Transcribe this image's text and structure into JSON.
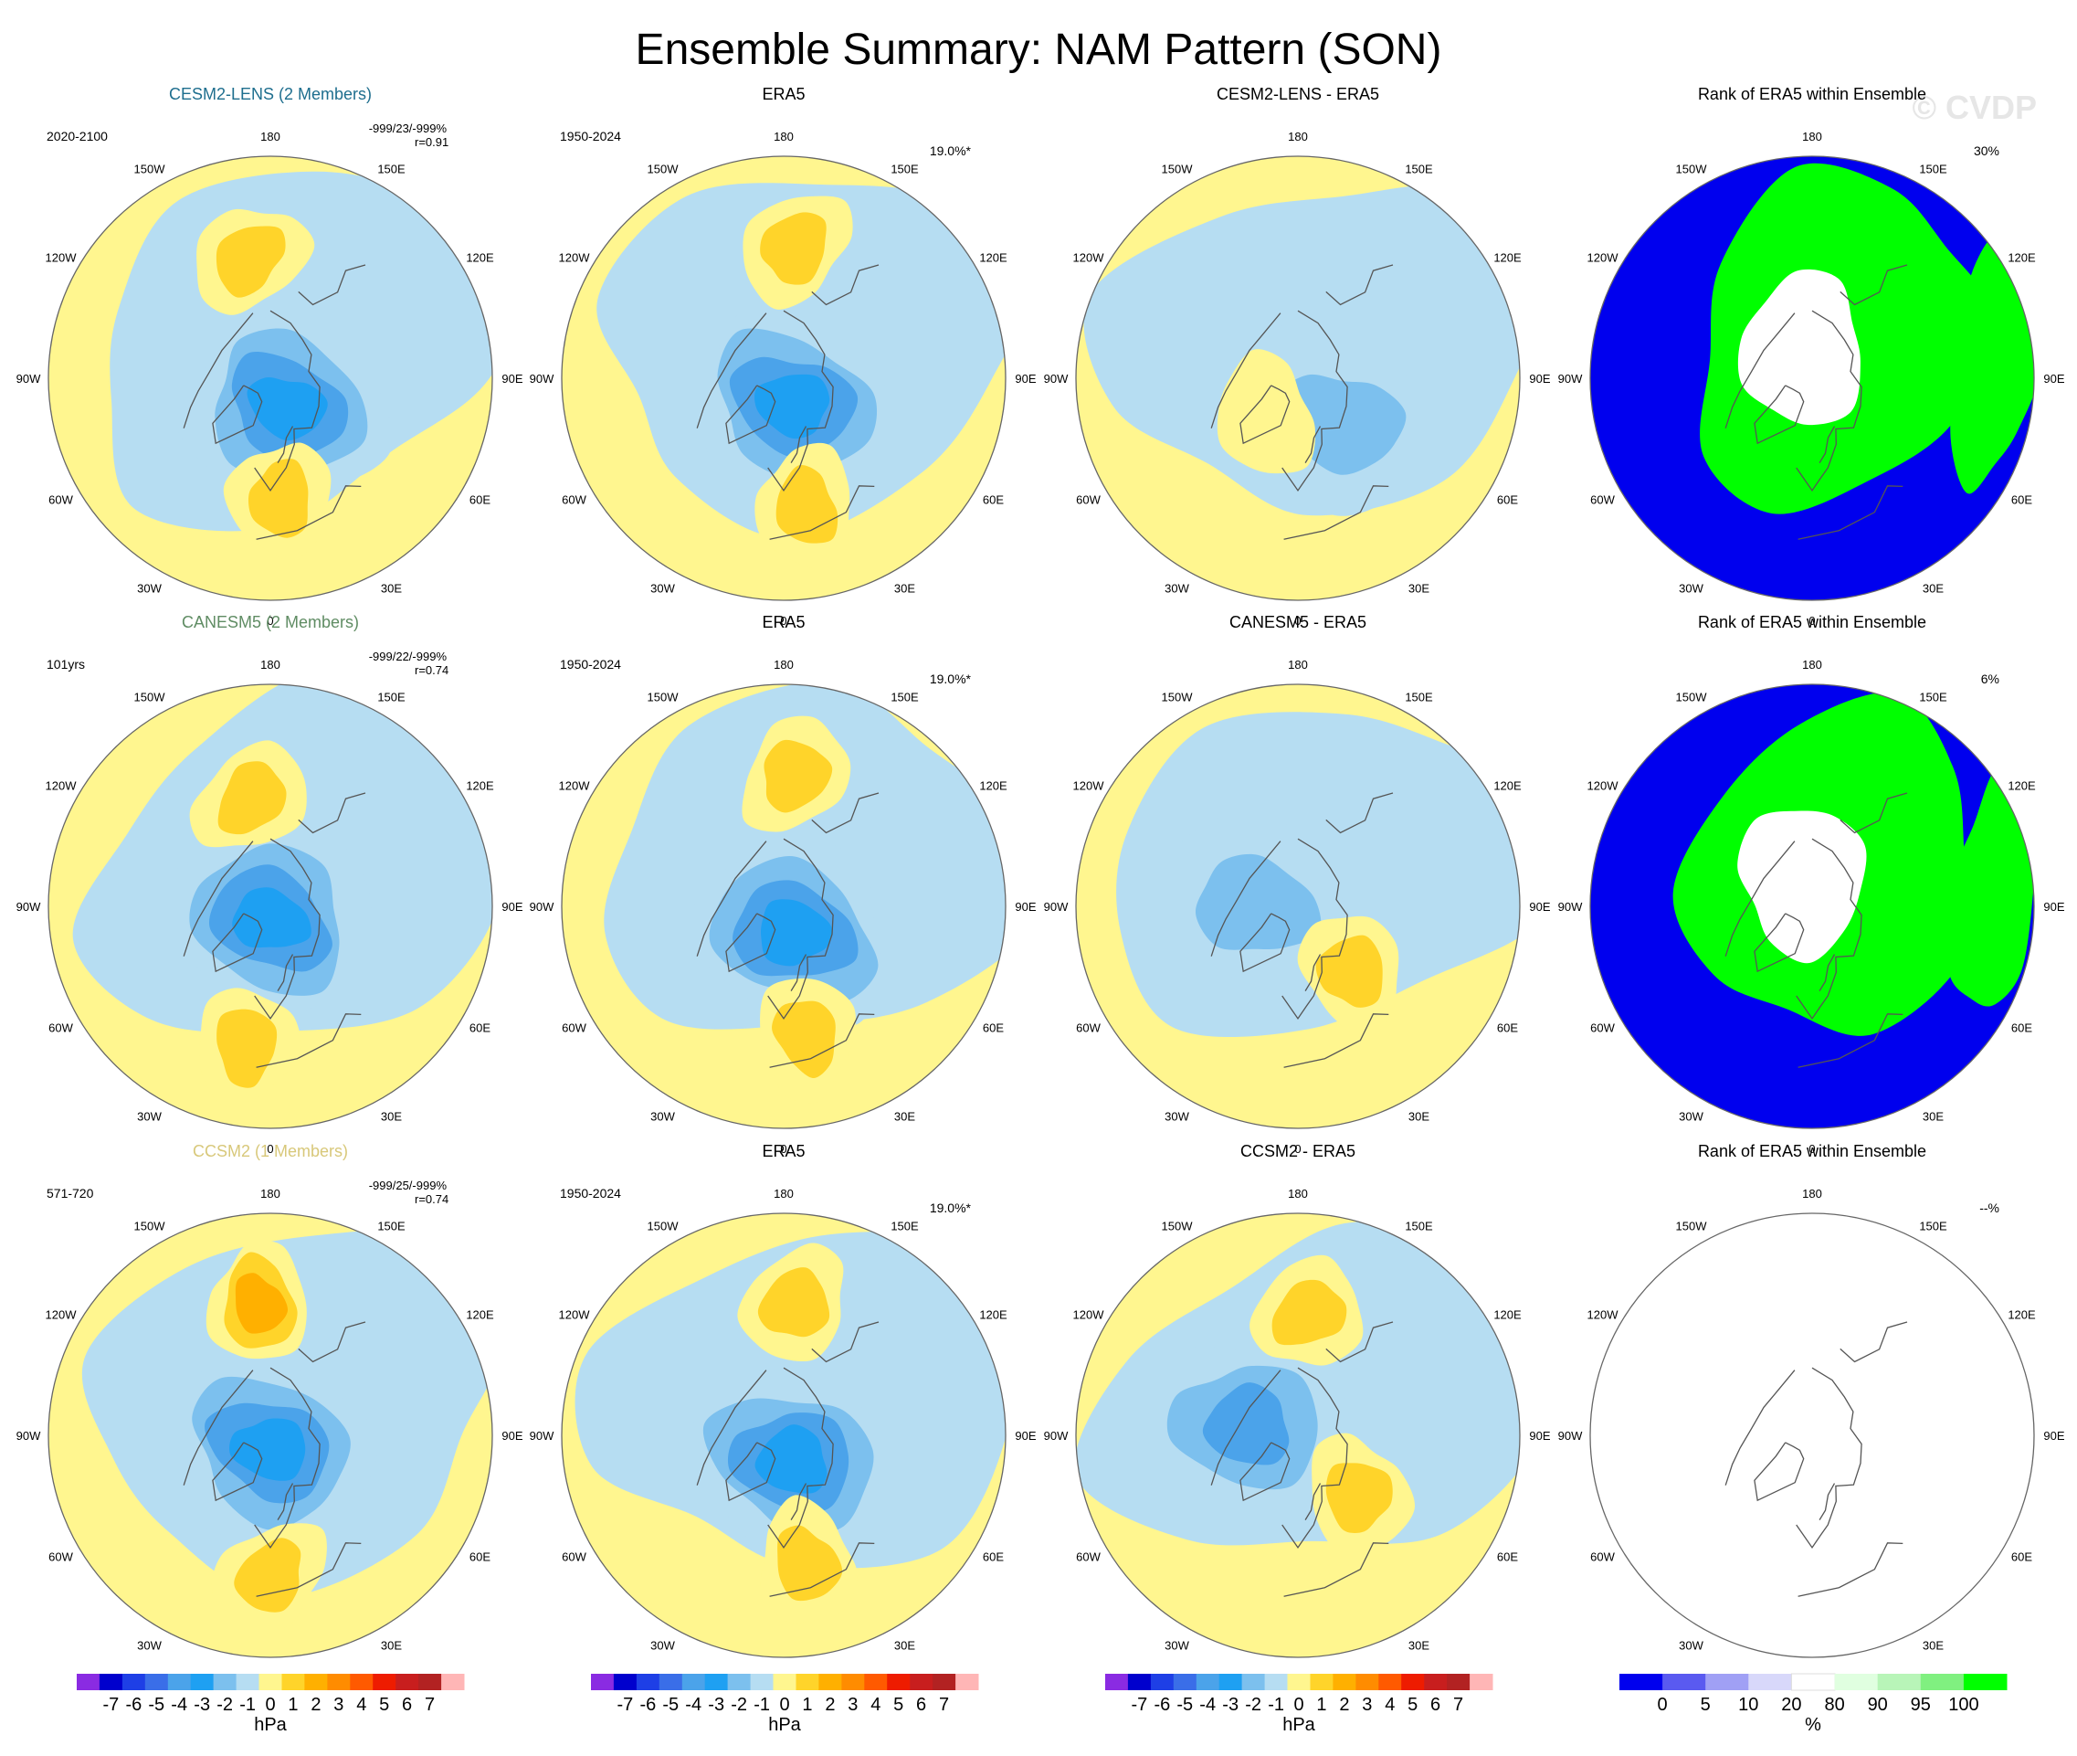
{
  "title": "Ensemble Summary: NAM Pattern (SON)",
  "watermark": "© CVDP",
  "lon_labels": [
    "180",
    "150E",
    "120E",
    "90E",
    "60E",
    "30E",
    "0",
    "30W",
    "60W",
    "90W",
    "120W",
    "150W"
  ],
  "colors": {
    "cesm2_lens": "#1e6e8e",
    "canesm5": "#5f8c63",
    "ccsm2": "#d8c87a",
    "pos_1": "#fff68f",
    "pos_2": "#ffd42a",
    "pos_3": "#ffb000",
    "neg_1": "#b6ddf2",
    "neg_2": "#7cc0ee",
    "neg_3": "#4ba3ea",
    "neg_4": "#1ea0f2",
    "rank_blue": "#0000ee",
    "rank_green": "#00ff00"
  },
  "chart_data": [
    {
      "type": "heatmap",
      "title": "CESM2-LENS (2 Members)",
      "title_color": "#1e6e8e",
      "period": "2020-2100",
      "stats_line1": "-999/23/-999%",
      "stats_line2": "r=0.91",
      "field": "model",
      "units": "hPa",
      "features": [
        {
          "sign": "neg",
          "level": 4,
          "lon": 30,
          "lat": 78,
          "desc": "Arctic low"
        },
        {
          "sign": "pos",
          "level": 2,
          "lon": 5,
          "lat": 48,
          "desc": "European high"
        },
        {
          "sign": "pos",
          "level": 2,
          "lon": -170,
          "lat": 48,
          "desc": "Pacific high"
        }
      ]
    },
    {
      "type": "heatmap",
      "title": "ERA5",
      "period": "1950-2024",
      "pct": "19.0%*",
      "field": "obs",
      "units": "hPa",
      "features": [
        {
          "sign": "neg",
          "level": 4,
          "lon": 20,
          "lat": 80,
          "desc": "Arctic low"
        },
        {
          "sign": "pos",
          "level": 2,
          "lon": 10,
          "lat": 45,
          "desc": "European high"
        },
        {
          "sign": "pos",
          "level": 2,
          "lon": 175,
          "lat": 45,
          "desc": "Pacific high"
        }
      ]
    },
    {
      "type": "heatmap",
      "title": "CESM2-LENS - ERA5",
      "field": "difference",
      "units": "hPa",
      "features": [
        {
          "sign": "neg",
          "level": 2,
          "lon": 45,
          "lat": 68,
          "desc": "Scandinavian anomaly"
        },
        {
          "sign": "pos",
          "level": 1,
          "lon": -40,
          "lat": 72,
          "desc": "Greenland anomaly"
        }
      ]
    },
    {
      "type": "heatmap",
      "title": "Rank of ERA5 within Ensemble",
      "pct": "30%",
      "field": "rank",
      "units": "%"
    },
    {
      "type": "heatmap",
      "title": "CANESM5 (2 Members)",
      "title_color": "#5f8c63",
      "period": "101yrs",
      "stats_line1": "-999/22/-999%",
      "stats_line2": "r=0.74",
      "field": "model",
      "units": "hPa",
      "features": [
        {
          "sign": "neg",
          "level": 4,
          "lon": 0,
          "lat": 85,
          "desc": "Arctic low"
        },
        {
          "sign": "pos",
          "level": 2,
          "lon": -10,
          "lat": 42,
          "desc": "Atlantic high"
        },
        {
          "sign": "pos",
          "level": 2,
          "lon": -170,
          "lat": 52,
          "desc": "Pacific high"
        }
      ]
    },
    {
      "type": "heatmap",
      "title": "ERA5",
      "period": "1950-2024",
      "pct": "19.0%*",
      "field": "obs",
      "units": "hPa",
      "features": [
        {
          "sign": "neg",
          "level": 4,
          "lon": 20,
          "lat": 80,
          "desc": "Arctic low"
        },
        {
          "sign": "pos",
          "level": 2,
          "lon": 10,
          "lat": 45,
          "desc": "European high"
        },
        {
          "sign": "pos",
          "level": 2,
          "lon": 175,
          "lat": 45,
          "desc": "Pacific high"
        }
      ]
    },
    {
      "type": "heatmap",
      "title": "CANESM5 - ERA5",
      "field": "difference",
      "units": "hPa",
      "features": [
        {
          "sign": "neg",
          "level": 2,
          "lon": -90,
          "lat": 75,
          "desc": "Canadian anomaly"
        },
        {
          "sign": "pos",
          "level": 2,
          "lon": 40,
          "lat": 60,
          "desc": "Russian anomaly"
        }
      ]
    },
    {
      "type": "heatmap",
      "title": "Rank of ERA5 within Ensemble",
      "pct": "6%",
      "field": "rank",
      "units": "%"
    },
    {
      "type": "heatmap",
      "title": "CCSM2 (1 Members)",
      "title_color": "#d8c87a",
      "period": "571-720",
      "stats_line1": "-999/25/-999%",
      "stats_line2": "r=0.74",
      "field": "model",
      "units": "hPa",
      "features": [
        {
          "sign": "neg",
          "level": 4,
          "lon": 0,
          "lat": 85,
          "desc": "Arctic low"
        },
        {
          "sign": "pos",
          "level": 3,
          "lon": -175,
          "lat": 45,
          "desc": "Pacific high"
        },
        {
          "sign": "pos",
          "level": 2,
          "lon": 0,
          "lat": 42,
          "desc": "Atlantic high"
        }
      ]
    },
    {
      "type": "heatmap",
      "title": "ERA5",
      "period": "1950-2024",
      "pct": "19.0%*",
      "field": "obs",
      "units": "hPa",
      "features": [
        {
          "sign": "neg",
          "level": 4,
          "lon": 20,
          "lat": 80,
          "desc": "Arctic low"
        },
        {
          "sign": "pos",
          "level": 2,
          "lon": 10,
          "lat": 45,
          "desc": "European high"
        },
        {
          "sign": "pos",
          "level": 2,
          "lon": 175,
          "lat": 45,
          "desc": "Pacific high"
        }
      ]
    },
    {
      "type": "heatmap",
      "title": "CCSM2 - ERA5",
      "field": "difference",
      "units": "hPa",
      "features": [
        {
          "sign": "neg",
          "level": 3,
          "lon": -100,
          "lat": 72,
          "desc": "Canadian anomaly"
        },
        {
          "sign": "pos",
          "level": 2,
          "lon": 45,
          "lat": 60,
          "desc": "Russian anomaly"
        },
        {
          "sign": "pos",
          "level": 2,
          "lon": 175,
          "lat": 48,
          "desc": "Pacific anomaly"
        }
      ]
    },
    {
      "type": "heatmap",
      "title": "Rank of ERA5 within Ensemble",
      "pct": "--%",
      "field": "rank",
      "units": "%"
    }
  ],
  "colorbars": [
    {
      "units": "hPa",
      "labels": [
        "-7",
        "-6",
        "-5",
        "-4",
        "-3",
        "-2",
        "-1",
        "0",
        "1",
        "2",
        "3",
        "4",
        "5",
        "6",
        "7"
      ],
      "colors": [
        "#8a2be2",
        "#0000cd",
        "#1e3fe6",
        "#3a6ee8",
        "#4ba3ea",
        "#1ea0f2",
        "#7cc0ee",
        "#b6ddf2",
        "#fff68f",
        "#ffd42a",
        "#ffb000",
        "#ff8c00",
        "#ff5a00",
        "#ee1c00",
        "#c81e1e",
        "#b22222",
        "#ffb6b6"
      ]
    },
    {
      "units": "hPa",
      "labels": [
        "-7",
        "-6",
        "-5",
        "-4",
        "-3",
        "-2",
        "-1",
        "0",
        "1",
        "2",
        "3",
        "4",
        "5",
        "6",
        "7"
      ],
      "colors": [
        "#8a2be2",
        "#0000cd",
        "#1e3fe6",
        "#3a6ee8",
        "#4ba3ea",
        "#1ea0f2",
        "#7cc0ee",
        "#b6ddf2",
        "#fff68f",
        "#ffd42a",
        "#ffb000",
        "#ff8c00",
        "#ff5a00",
        "#ee1c00",
        "#c81e1e",
        "#b22222",
        "#ffb6b6"
      ]
    },
    {
      "units": "hPa",
      "labels": [
        "-7",
        "-6",
        "-5",
        "-4",
        "-3",
        "-2",
        "-1",
        "0",
        "1",
        "2",
        "3",
        "4",
        "5",
        "6",
        "7"
      ],
      "colors": [
        "#8a2be2",
        "#0000cd",
        "#1e3fe6",
        "#3a6ee8",
        "#4ba3ea",
        "#1ea0f2",
        "#7cc0ee",
        "#b6ddf2",
        "#fff68f",
        "#ffd42a",
        "#ffb000",
        "#ff8c00",
        "#ff5a00",
        "#ee1c00",
        "#c81e1e",
        "#b22222",
        "#ffb6b6"
      ]
    },
    {
      "units": "%",
      "labels": [
        "0",
        "5",
        "10",
        "20",
        "80",
        "90",
        "95",
        "100"
      ],
      "colors": [
        "#0000ee",
        "#5a5af0",
        "#a0a0f5",
        "#d8d8fa",
        "#ffffff",
        "#e0ffe0",
        "#b8f5b8",
        "#80f080",
        "#00ff00"
      ]
    }
  ]
}
